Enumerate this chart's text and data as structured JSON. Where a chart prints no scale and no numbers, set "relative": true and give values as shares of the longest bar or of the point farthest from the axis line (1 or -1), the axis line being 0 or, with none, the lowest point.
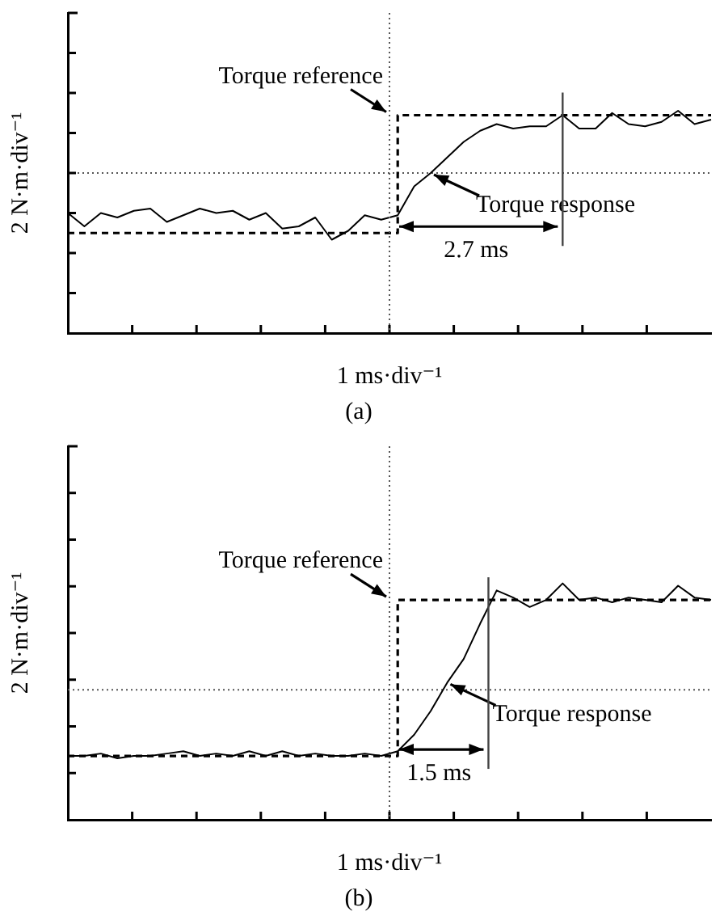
{
  "chart_data": [
    {
      "type": "line",
      "title": "(a)",
      "xlabel": "1 ms·div⁻¹",
      "ylabel": "2 N·m·div⁻¹",
      "relative": true,
      "marker": "none",
      "categories": [
        null,
        null,
        null,
        null,
        null,
        null,
        null,
        null,
        null,
        null,
        null,
        null,
        null,
        null,
        null,
        null,
        null,
        null,
        null,
        null,
        null,
        null,
        null,
        null,
        null,
        null,
        null,
        null,
        null,
        null,
        null,
        null,
        null,
        null,
        null,
        null,
        null,
        null,
        null,
        null
      ],
      "series": [
        {
          "name": "Torque reference",
          "type": "step",
          "color": "#000000",
          "line_style": "dashed",
          "values": [
            0.45,
            0.45,
            0.45,
            0.45,
            0.45,
            0.45,
            0.45,
            0.45,
            0.45,
            0.45,
            0.45,
            0.45,
            0.45,
            0.45,
            0.45,
            0.45,
            0.45,
            0.45,
            0.45,
            0.45,
            0.98,
            0.98,
            0.98,
            0.98,
            0.98,
            0.98,
            0.98,
            0.98,
            0.98,
            0.98,
            0.98,
            0.98,
            0.98,
            0.98,
            0.98,
            0.98,
            0.98,
            0.98,
            0.98,
            0.98
          ]
        },
        {
          "name": "Torque response",
          "type": "line",
          "color": "#000000",
          "line_style": "solid",
          "values": [
            0.54,
            0.48,
            0.54,
            0.52,
            0.55,
            0.56,
            0.5,
            0.53,
            0.56,
            0.54,
            0.55,
            0.51,
            0.54,
            0.47,
            0.48,
            0.52,
            0.42,
            0.46,
            0.53,
            0.51,
            0.53,
            0.66,
            0.72,
            0.79,
            0.86,
            0.91,
            0.94,
            0.92,
            0.93,
            0.93,
            0.98,
            0.92,
            0.92,
            0.99,
            0.94,
            0.93,
            0.95,
            1,
            0.94,
            0.96
          ]
        }
      ],
      "ref_lines": [
        {
          "axis": "y",
          "value": 0.72,
          "color": "#555555",
          "line_style": "dotted"
        }
      ],
      "annotations": [
        "2.7 ms"
      ]
    },
    {
      "type": "line",
      "title": "(b)",
      "xlabel": "1 ms·div⁻¹",
      "ylabel": "2 N·m·div⁻¹",
      "relative": true,
      "marker": "none",
      "categories": [
        null,
        null,
        null,
        null,
        null,
        null,
        null,
        null,
        null,
        null,
        null,
        null,
        null,
        null,
        null,
        null,
        null,
        null,
        null,
        null,
        null,
        null,
        null,
        null,
        null,
        null,
        null,
        null,
        null,
        null,
        null,
        null,
        null,
        null,
        null,
        null,
        null,
        null,
        null,
        null
      ],
      "series": [
        {
          "name": "Torque reference",
          "type": "step",
          "color": "#000000",
          "line_style": "dashed",
          "values": [
            0.27,
            0.27,
            0.27,
            0.27,
            0.27,
            0.27,
            0.27,
            0.27,
            0.27,
            0.27,
            0.27,
            0.27,
            0.27,
            0.27,
            0.27,
            0.27,
            0.27,
            0.27,
            0.27,
            0.27,
            0.93,
            0.93,
            0.93,
            0.93,
            0.93,
            0.93,
            0.93,
            0.93,
            0.93,
            0.93,
            0.93,
            0.93,
            0.93,
            0.93,
            0.93,
            0.93,
            0.93,
            0.93,
            0.93,
            0.93
          ]
        },
        {
          "name": "Torque response",
          "type": "line",
          "color": "#000000",
          "line_style": "solid",
          "values": [
            0.27,
            0.27,
            0.28,
            0.26,
            0.27,
            0.27,
            0.28,
            0.29,
            0.27,
            0.28,
            0.27,
            0.29,
            0.27,
            0.29,
            0.27,
            0.28,
            0.27,
            0.27,
            0.28,
            0.27,
            0.29,
            0.36,
            0.46,
            0.58,
            0.68,
            0.83,
            0.97,
            0.94,
            0.9,
            0.93,
            1,
            0.93,
            0.94,
            0.92,
            0.94,
            0.93,
            0.92,
            0.99,
            0.94,
            0.93
          ]
        }
      ],
      "ref_lines": [
        {
          "axis": "y",
          "value": 0.55,
          "color": "#555555",
          "line_style": "dotted"
        }
      ],
      "annotations": [
        "1.5 ms"
      ]
    }
  ]
}
